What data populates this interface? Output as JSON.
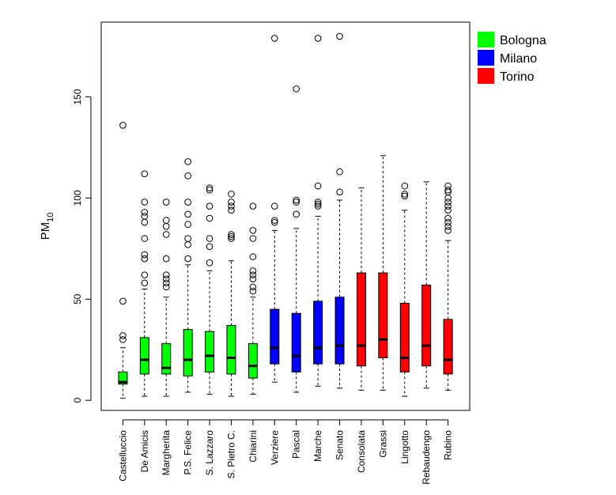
{
  "chart_data": {
    "type": "boxplot",
    "title": "",
    "xlabel": "",
    "ylabel": "PM",
    "ylabel_subscript": "10",
    "ylim": [
      -5,
      187
    ],
    "yticks": [
      0,
      50,
      100,
      150
    ],
    "legend": [
      {
        "label": "Bologna",
        "color": "#00ff00"
      },
      {
        "label": "Milano",
        "color": "#0000ff"
      },
      {
        "label": "Torino",
        "color": "#ff0000"
      }
    ],
    "boxes": [
      {
        "label": "Castelluccio",
        "group": "Bologna",
        "lw": 1,
        "q1": 8,
        "median": 9,
        "q3": 14,
        "uw": 26,
        "outliers": [
          30,
          32,
          49,
          136
        ]
      },
      {
        "label": "De Amicis",
        "group": "Bologna",
        "lw": 2,
        "q1": 13,
        "median": 20,
        "q3": 31,
        "uw": 55,
        "outliers": [
          58,
          62,
          70,
          72,
          80,
          88,
          91,
          93,
          98,
          112
        ]
      },
      {
        "label": "Margherita",
        "group": "Bologna",
        "lw": 2,
        "q1": 13,
        "median": 16,
        "q3": 28,
        "uw": 51,
        "outliers": [
          56,
          58,
          60,
          62,
          70,
          82,
          86,
          89,
          98
        ]
      },
      {
        "label": "P.S. Felice",
        "group": "Bologna",
        "lw": 4,
        "q1": 12,
        "median": 20,
        "q3": 35,
        "uw": 67,
        "outliers": [
          70,
          77,
          80,
          87,
          92,
          98,
          111,
          118
        ]
      },
      {
        "label": "S. Lazzaro",
        "group": "Bologna",
        "lw": 3,
        "q1": 14,
        "median": 22,
        "q3": 34,
        "uw": 64,
        "outliers": [
          68,
          76,
          80,
          90,
          96,
          104,
          105
        ]
      },
      {
        "label": "S. Pietro C.",
        "group": "Bologna",
        "lw": 2,
        "q1": 13,
        "median": 21,
        "q3": 37,
        "uw": 69,
        "outliers": [
          80,
          81,
          82,
          94,
          96,
          98,
          102
        ]
      },
      {
        "label": "Chiarini",
        "group": "Bologna",
        "lw": 3,
        "q1": 11,
        "median": 17,
        "q3": 28,
        "uw": 51,
        "outliers": [
          54,
          56,
          60,
          62,
          64,
          71,
          80,
          84,
          96
        ]
      },
      {
        "label": "Verziere",
        "group": "Milano",
        "lw": 9,
        "q1": 18,
        "median": 26,
        "q3": 45,
        "uw": 84,
        "outliers": [
          88,
          89,
          96,
          179
        ]
      },
      {
        "label": "Pascal",
        "group": "Milano",
        "lw": 4,
        "q1": 14,
        "median": 22,
        "q3": 43,
        "uw": 85,
        "outliers": [
          92,
          98,
          99,
          154
        ]
      },
      {
        "label": "Marche",
        "group": "Milano",
        "lw": 7,
        "q1": 18,
        "median": 26,
        "q3": 49,
        "uw": 91,
        "outliers": [
          96,
          97,
          98,
          106,
          179
        ]
      },
      {
        "label": "Senato",
        "group": "Milano",
        "lw": 6,
        "q1": 18,
        "median": 27,
        "q3": 51,
        "uw": 99,
        "outliers": [
          103,
          113,
          180
        ]
      },
      {
        "label": "Consolata",
        "group": "Torino",
        "lw": 5,
        "q1": 17,
        "median": 27,
        "q3": 63,
        "uw": 105,
        "outliers": []
      },
      {
        "label": "Grassi",
        "group": "Torino",
        "lw": 5,
        "q1": 21,
        "median": 30,
        "q3": 63,
        "uw": 121,
        "outliers": []
      },
      {
        "label": "Lingotto",
        "group": "Torino",
        "lw": 2,
        "q1": 14,
        "median": 21,
        "q3": 48,
        "uw": 94,
        "outliers": [
          101,
          102,
          106
        ]
      },
      {
        "label": "Rebaudengo",
        "group": "Torino",
        "lw": 6,
        "q1": 17,
        "median": 27,
        "q3": 57,
        "uw": 108,
        "outliers": []
      },
      {
        "label": "Rubino",
        "group": "Torino",
        "lw": 5,
        "q1": 13,
        "median": 20,
        "q3": 40,
        "uw": 79,
        "outliers": [
          84,
          86,
          88,
          90,
          94,
          96,
          98,
          100,
          103,
          104,
          106
        ]
      }
    ]
  }
}
